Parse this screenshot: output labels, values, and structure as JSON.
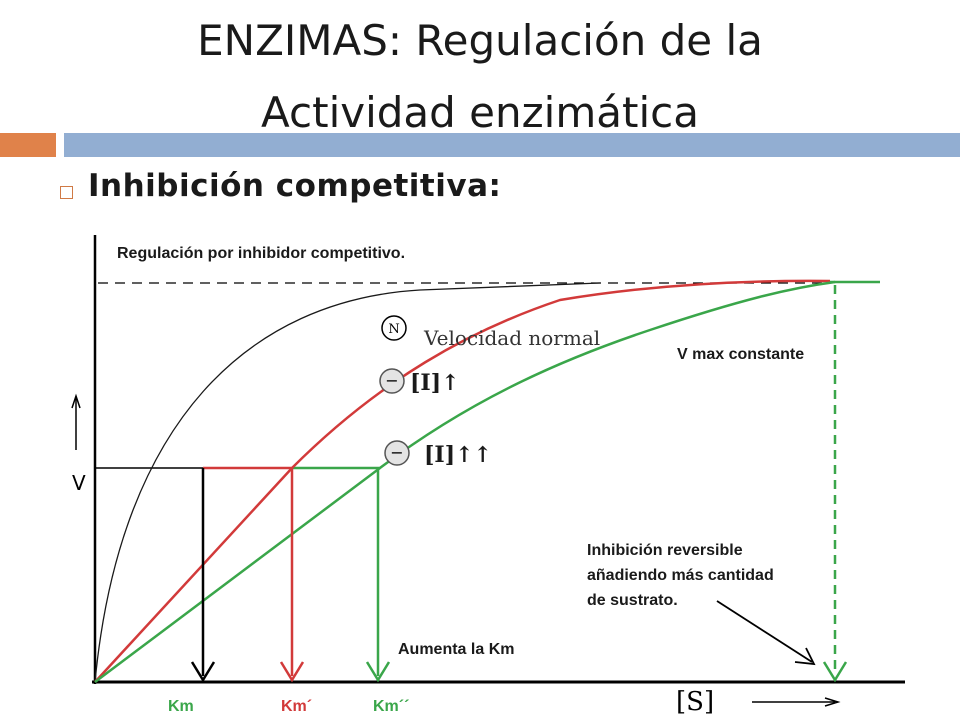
{
  "title": {
    "line1": "ENZIMAS: Regulación de la",
    "line2": "Actividad enzimática"
  },
  "bullet": {
    "text": "Inhibición competitiva:"
  },
  "diagram": {
    "heading": "Regulación por inhibidor competitivo.",
    "normal_label": "Velocidad normal",
    "normal_marker": "N",
    "inhibitor_low_label": "[I]↑",
    "inhibitor_high_label": "[I]↑↑",
    "inhibitor_marker": "−",
    "vmax_label": "V max constante",
    "reversible_line1": "Inhibición reversible",
    "reversible_line2": "añadiendo más cantidad",
    "reversible_line3": "de sustrato.",
    "km_increase_label": "Aumenta la Km",
    "y_axis_label": "V",
    "x_axis_label": "[S]",
    "km_labels": [
      "Km",
      "Km´",
      "Km´´"
    ],
    "colors": {
      "normal": "#1a1a1a",
      "low": "#d23a3a",
      "high": "#3aa64a",
      "km": "#3aa64a"
    }
  }
}
